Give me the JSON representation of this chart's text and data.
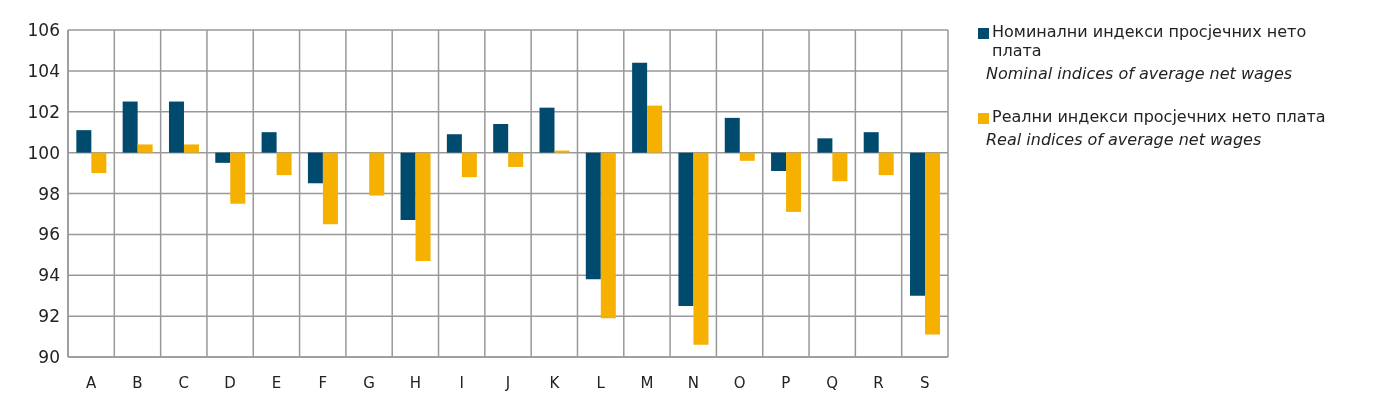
{
  "chart_data": {
    "type": "bar",
    "categories": [
      "A",
      "B",
      "C",
      "D",
      "E",
      "F",
      "G",
      "H",
      "I",
      "J",
      "K",
      "L",
      "M",
      "N",
      "O",
      "P",
      "Q",
      "R",
      "S"
    ],
    "series": [
      {
        "name": "Номинални индекси просјечних нето плата\nNominal indices of average net wages",
        "color": "#004a6e",
        "base": [
          100,
          100,
          100,
          100,
          100,
          100,
          null,
          100,
          100,
          100,
          100,
          100,
          100,
          100,
          100,
          100,
          100,
          100,
          100
        ],
        "values": [
          1.1,
          2.5,
          2.5,
          -0.5,
          1.0,
          -1.5,
          null,
          -3.3,
          0.9,
          1.4,
          2.2,
          -6.2,
          4.4,
          -7.5,
          1.7,
          -0.9,
          0.7,
          1.0,
          -7.0
        ]
      },
      {
        "name": "Реални индекси просјечних нето плата\nReal indices of average net wages",
        "color": "#f5b000",
        "base": [
          100,
          100,
          100,
          100,
          100,
          100,
          100,
          100,
          100,
          100,
          100,
          100,
          100,
          100,
          100,
          100,
          100,
          100,
          100
        ],
        "values": [
          -1.0,
          0.4,
          0.4,
          -2.5,
          -1.1,
          -3.5,
          -2.1,
          -5.3,
          -1.2,
          -0.7,
          0.1,
          -8.1,
          2.3,
          -9.4,
          -0.4,
          -2.9,
          -1.4,
          -1.1,
          -8.9
        ]
      }
    ],
    "ylim": [
      90,
      106
    ],
    "yticks": [
      90,
      92,
      94,
      96,
      98,
      100,
      102,
      104,
      106
    ],
    "grid": true,
    "legend": "right"
  }
}
